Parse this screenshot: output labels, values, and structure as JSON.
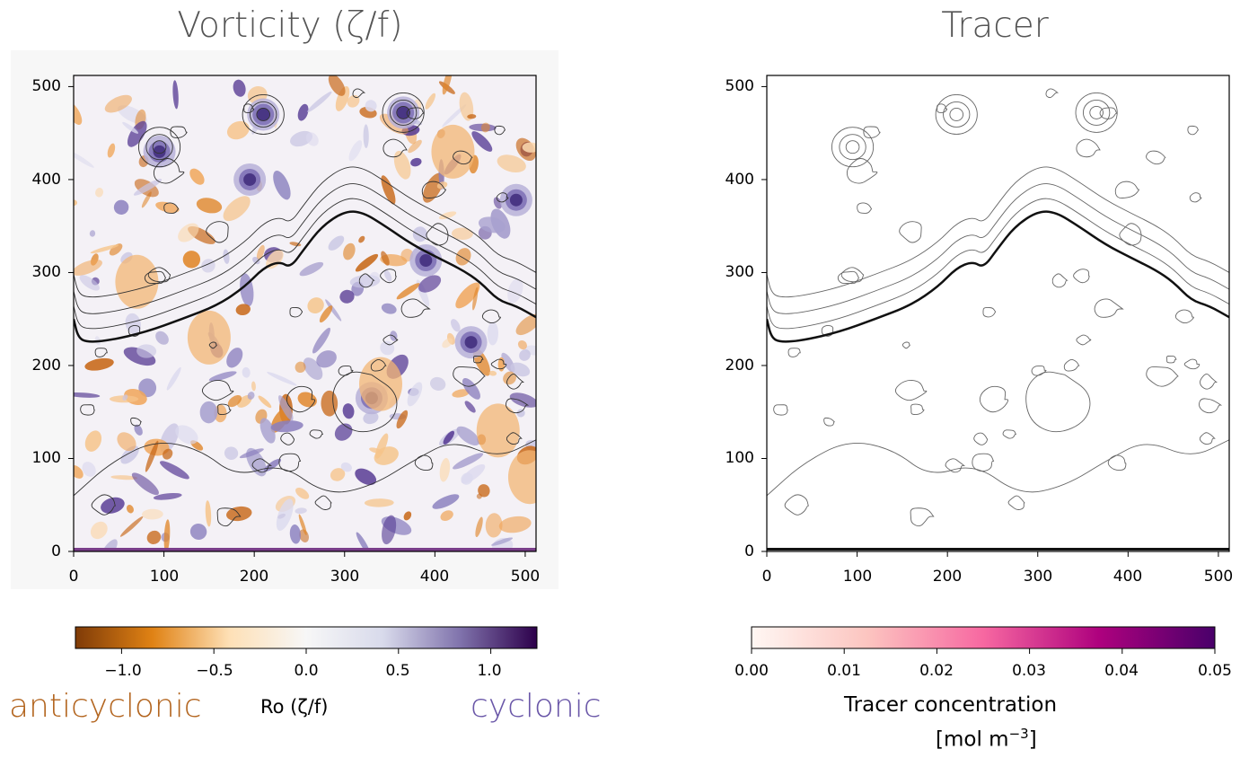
{
  "chart_data": [
    {
      "type": "heatmap",
      "title": "Vorticity (ζ/f)",
      "x_ticks": [
        "0",
        "100",
        "200",
        "300",
        "400",
        "500"
      ],
      "y_ticks": [
        "0",
        "100",
        "200",
        "300",
        "400",
        "500"
      ],
      "xlim": [
        0,
        512
      ],
      "ylim": [
        0,
        512
      ],
      "front_contour": [
        [
          0,
          250
        ],
        [
          5,
          230
        ],
        [
          15,
          225
        ],
        [
          40,
          227
        ],
        [
          80,
          236
        ],
        [
          120,
          250
        ],
        [
          160,
          265
        ],
        [
          190,
          285
        ],
        [
          210,
          305
        ],
        [
          228,
          312
        ],
        [
          240,
          305
        ],
        [
          255,
          325
        ],
        [
          275,
          350
        ],
        [
          300,
          366
        ],
        [
          320,
          365
        ],
        [
          345,
          350
        ],
        [
          375,
          330
        ],
        [
          405,
          315
        ],
        [
          430,
          303
        ],
        [
          450,
          290
        ],
        [
          470,
          270
        ],
        [
          490,
          264
        ],
        [
          512,
          252
        ]
      ],
      "colorbar": {
        "label": "Ro (ζ/f)",
        "range": [
          -1.25,
          1.25
        ],
        "ticks": [
          "−1.0",
          "−0.5",
          "0.0",
          "0.5",
          "1.0"
        ],
        "tick_values": [
          -1.0,
          -0.5,
          0.0,
          0.5,
          1.0
        ],
        "colormap": "PuOr",
        "colors": [
          "#7f3b08",
          "#e08214",
          "#fee0b6",
          "#f7f7f7",
          "#d8daeb",
          "#8073ac",
          "#2d004b"
        ]
      },
      "annotations": {
        "negative": "anticyclonic",
        "positive": "cyclonic",
        "negative_color": "#b3651f",
        "positive_color": "#6a57a8"
      }
    },
    {
      "type": "heatmap",
      "title": "Tracer",
      "x_ticks": [
        "0",
        "100",
        "200",
        "300",
        "400",
        "500"
      ],
      "y_ticks": [
        "0",
        "100",
        "200",
        "300",
        "400",
        "500"
      ],
      "xlim": [
        0,
        512
      ],
      "ylim": [
        0,
        512
      ],
      "colorbar": {
        "label_line1": "Tracer concentration",
        "label_line2": "[mol m",
        "label_exp": "−3",
        "label_close": "]",
        "range": [
          0.0,
          0.05
        ],
        "ticks": [
          "0.00",
          "0.01",
          "0.02",
          "0.03",
          "0.04",
          "0.05"
        ],
        "tick_values": [
          0.0,
          0.01,
          0.02,
          0.03,
          0.04,
          0.05
        ],
        "colormap": "RdPu",
        "colors": [
          "#fff7f3",
          "#fcc5c0",
          "#f768a1",
          "#ae017e",
          "#49006a"
        ]
      }
    }
  ]
}
